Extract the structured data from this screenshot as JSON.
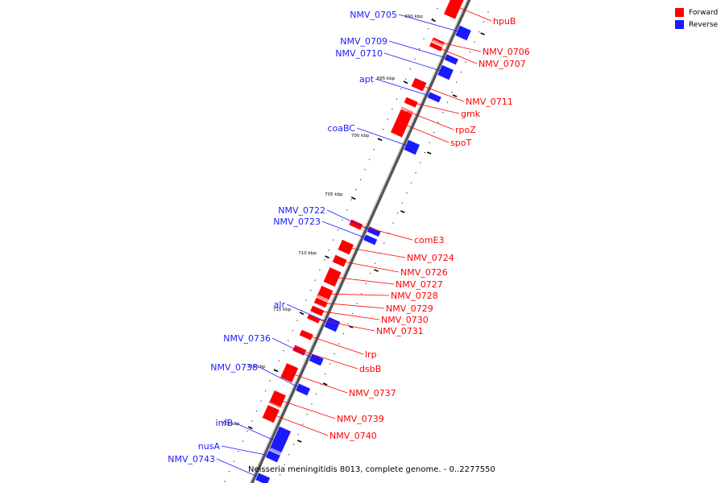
{
  "legend": {
    "forward_label": "Forward",
    "reverse_label": "Reverse",
    "forward_color": "#ff0000",
    "reverse_color": "#1a1aff"
  },
  "caption": "Neisseria meningitidis 8013, complete genome. - 0..2277550",
  "ticks": [
    "690 kbp",
    "695 kbp",
    "700 kbp",
    "705 kbp",
    "710 kbp",
    "715 kbp",
    "720 kbp",
    "725 kbp"
  ],
  "genes_reverse": [
    "NMV_0705",
    "NMV_0709",
    "NMV_0710",
    "apt",
    "coaBC",
    "NMV_0722",
    "NMV_0723",
    "alr",
    "NMV_0736",
    "NMV_0738",
    "infB",
    "nusA",
    "NMV_0743"
  ],
  "genes_forward": [
    "hpuB",
    "NMV_0706",
    "NMV_0707",
    "NMV_0711",
    "gmk",
    "rpoZ",
    "spoT",
    "comE3",
    "NMV_0724",
    "NMV_0726",
    "NMV_0727",
    "NMV_0728",
    "NMV_0729",
    "NMV_0730",
    "NMV_0731",
    "lrp",
    "dsbB",
    "NMV_0737",
    "NMV_0739",
    "NMV_0740"
  ]
}
